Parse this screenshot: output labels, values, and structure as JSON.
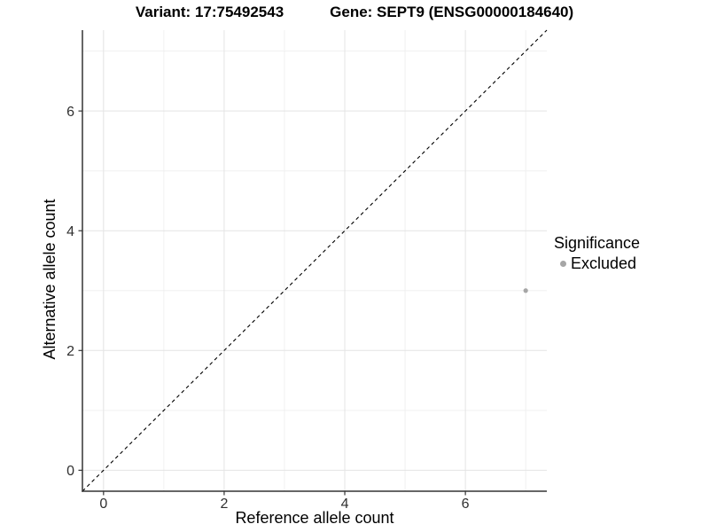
{
  "chart_data": {
    "type": "scatter",
    "titles": [
      "Variant: 17:75492543",
      "Gene: SEPT9 (ENSG00000184640)"
    ],
    "xlabel": "Reference allele count",
    "ylabel": "Alternative allele count",
    "xlim": [
      -0.35,
      7.35
    ],
    "ylim": [
      -0.35,
      7.35
    ],
    "x_major_ticks": [
      0,
      2,
      4,
      6
    ],
    "y_major_ticks": [
      0,
      2,
      4,
      6
    ],
    "x_minor_gridlines": [
      1,
      3,
      5,
      7
    ],
    "y_minor_gridlines": [
      1,
      3,
      5,
      7
    ],
    "grid": "major and minor, light gray on white panel",
    "reference_line": {
      "type": "identity y=x",
      "style": "dashed",
      "color": "#000000"
    },
    "series": [
      {
        "name": "Excluded",
        "color": "#a6a6a6",
        "points": [
          [
            7,
            3
          ]
        ]
      }
    ],
    "legend": {
      "title": "Significance",
      "position": "right",
      "entries": [
        {
          "label": "Excluded",
          "color": "#a6a6a6"
        }
      ]
    },
    "colors": {
      "major_grid": "#e4e4e4",
      "minor_grid": "#f0f0f0",
      "axis_line": "#333333",
      "tick_mark": "#333333",
      "tick_label": "#303030",
      "title_text": "#000000",
      "point": "#a6a6a6"
    }
  }
}
